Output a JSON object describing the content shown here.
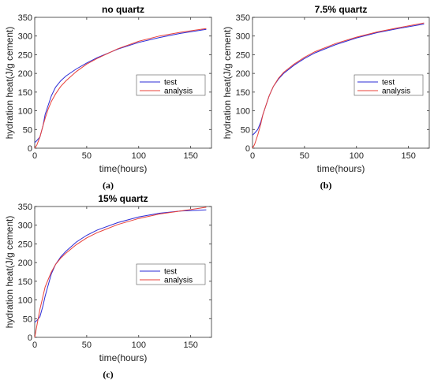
{
  "chart_data": [
    {
      "type": "line",
      "title": "no quartz",
      "caption": "(a)",
      "xlabel": "time(hours)",
      "ylabel": "hydration heat(J/g cement)",
      "xlim": [
        0,
        170
      ],
      "ylim": [
        0,
        350
      ],
      "xticks": [
        0,
        50,
        100,
        150
      ],
      "yticks": [
        0,
        50,
        100,
        150,
        200,
        250,
        300,
        350
      ],
      "grid": false,
      "legend": "center-right",
      "series": [
        {
          "name": "test",
          "color": "#2b2bd6",
          "x": [
            0,
            2,
            5,
            8,
            10,
            13,
            16,
            20,
            25,
            30,
            40,
            50,
            60,
            80,
            100,
            120,
            140,
            165
          ],
          "y": [
            15,
            20,
            30,
            60,
            90,
            115,
            140,
            163,
            180,
            193,
            212,
            228,
            242,
            265,
            283,
            296,
            307,
            318
          ]
        },
        {
          "name": "analysis",
          "color": "#e8403a",
          "x": [
            0,
            2,
            5,
            8,
            10,
            13,
            16,
            20,
            25,
            30,
            40,
            50,
            60,
            80,
            100,
            120,
            140,
            165
          ],
          "y": [
            0,
            8,
            30,
            60,
            80,
            105,
            125,
            145,
            165,
            180,
            205,
            225,
            240,
            266,
            286,
            300,
            310,
            320
          ]
        }
      ]
    },
    {
      "type": "line",
      "title": "7.5% quartz",
      "caption": "(b)",
      "xlabel": "time(hours)",
      "ylabel": "hydration heat(J/g cement)",
      "xlim": [
        0,
        170
      ],
      "ylim": [
        0,
        350
      ],
      "xticks": [
        0,
        50,
        100,
        150
      ],
      "yticks": [
        0,
        50,
        100,
        150,
        200,
        250,
        300,
        350
      ],
      "grid": false,
      "legend": "center-right",
      "series": [
        {
          "name": "test",
          "color": "#2b2bd6",
          "x": [
            0,
            2,
            5,
            8,
            10,
            13,
            16,
            20,
            25,
            30,
            40,
            50,
            60,
            80,
            100,
            120,
            140,
            165
          ],
          "y": [
            35,
            40,
            50,
            70,
            90,
            115,
            140,
            165,
            185,
            200,
            222,
            240,
            255,
            277,
            295,
            309,
            320,
            332
          ]
        },
        {
          "name": "analysis",
          "color": "#e8403a",
          "x": [
            0,
            2,
            5,
            8,
            10,
            13,
            16,
            20,
            25,
            30,
            40,
            50,
            60,
            80,
            100,
            120,
            140,
            165
          ],
          "y": [
            0,
            10,
            35,
            65,
            90,
            115,
            140,
            165,
            187,
            203,
            225,
            243,
            258,
            280,
            297,
            311,
            322,
            335
          ]
        }
      ]
    },
    {
      "type": "line",
      "title": "15% quartz",
      "caption": "(c)",
      "xlabel": "time(hours)",
      "ylabel": "hydration heat(J/g cement)",
      "xlim": [
        0,
        170
      ],
      "ylim": [
        0,
        350
      ],
      "xticks": [
        0,
        50,
        100,
        150
      ],
      "yticks": [
        0,
        50,
        100,
        150,
        200,
        250,
        300,
        350
      ],
      "grid": false,
      "legend": "center-right",
      "series": [
        {
          "name": "test",
          "color": "#2b2bd6",
          "x": [
            0,
            2,
            5,
            8,
            10,
            13,
            16,
            20,
            25,
            30,
            40,
            50,
            60,
            80,
            100,
            120,
            140,
            165
          ],
          "y": [
            40,
            45,
            55,
            85,
            110,
            140,
            170,
            195,
            215,
            230,
            255,
            273,
            287,
            307,
            322,
            332,
            338,
            341
          ]
        },
        {
          "name": "analysis",
          "color": "#e8403a",
          "x": [
            0,
            2,
            5,
            8,
            10,
            13,
            16,
            20,
            25,
            30,
            40,
            50,
            60,
            80,
            100,
            120,
            140,
            165
          ],
          "y": [
            0,
            30,
            75,
            110,
            135,
            155,
            175,
            195,
            212,
            225,
            248,
            266,
            280,
            302,
            318,
            330,
            338,
            348
          ]
        }
      ]
    }
  ]
}
